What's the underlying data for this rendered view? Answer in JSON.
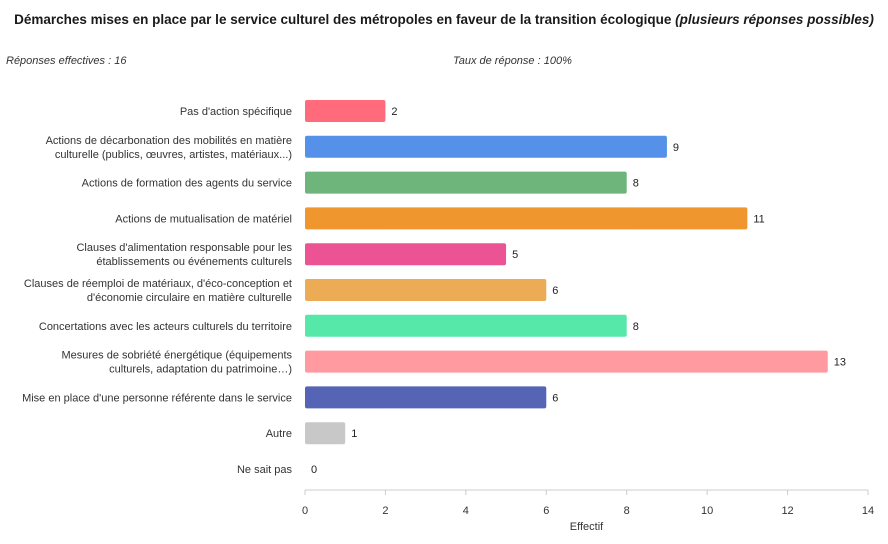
{
  "chart_data": {
    "type": "bar",
    "orientation": "horizontal",
    "title": "Démarches mises en place par le service culturel des métropoles en faveur de la transition écologique",
    "subtitle": "(plusieurs réponses possibles)",
    "responses": "Réponses effectives : 16",
    "rate": "Taux de réponse : 100%",
    "xlabel": "Effectif",
    "xlim": [
      0,
      14
    ],
    "xticks": [
      "0",
      "2",
      "4",
      "6",
      "8",
      "10",
      "12",
      "14"
    ],
    "categories": [
      [
        "Pas d'action spécifique"
      ],
      [
        "Actions de décarbonation des mobilités en matière",
        "culturelle (publics, œuvres, artistes, matériaux...)"
      ],
      [
        "Actions de formation des agents du service"
      ],
      [
        "Actions de mutualisation de matériel"
      ],
      [
        "Clauses d'alimentation responsable pour les",
        "établissements ou événements culturels"
      ],
      [
        "Clauses de réemploi de matériaux, d'éco-conception et",
        "d'économie circulaire en matière culturelle"
      ],
      [
        "Concertations avec les acteurs culturels du territoire"
      ],
      [
        "Mesures de sobriété énergétique (équipements",
        "culturels, adaptation du patrimoine…)"
      ],
      [
        "Mise en place d'une personne référente dans le service"
      ],
      [
        "Autre"
      ],
      [
        "Ne sait pas"
      ]
    ],
    "values": [
      2,
      9,
      8,
      11,
      5,
      6,
      8,
      13,
      6,
      1,
      0
    ],
    "colors": [
      "#ff6b7a",
      "#5591e8",
      "#6db57a",
      "#f0962f",
      "#ec5394",
      "#ebac55",
      "#55e8a8",
      "#ff9aa0",
      "#5564b5",
      "#c8c8c8",
      "#c8c8c8"
    ]
  }
}
